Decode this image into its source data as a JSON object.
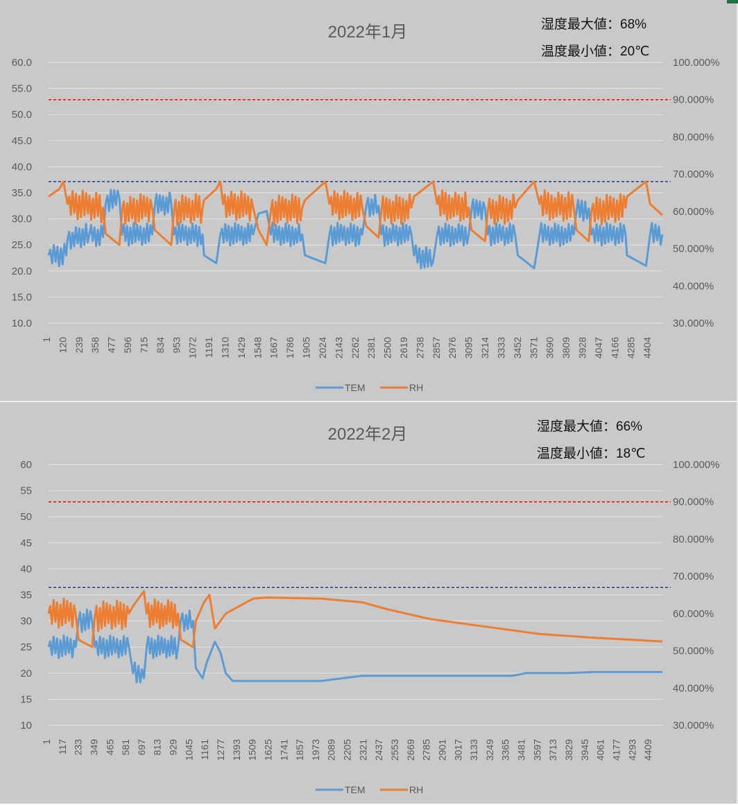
{
  "charts": [
    {
      "title": "2022年1月",
      "note_humidity_max": "湿度最大値：68%",
      "note_temp_min": "温度最小値：20℃",
      "legend": [
        "TEM",
        "RH"
      ],
      "colors": {
        "TEM": "#5b9bd5",
        "RH": "#ed7d31",
        "upper_limit": "#ff0000",
        "lower_limit": "#1f3b8c"
      }
    },
    {
      "title": "2022年2月",
      "note_humidity_max": "湿度最大値：66%",
      "note_temp_min": "温度最小値：18℃",
      "legend": [
        "TEM",
        "RH"
      ],
      "colors": {
        "TEM": "#5b9bd5",
        "RH": "#ed7d31",
        "upper_limit": "#ff0000",
        "lower_limit": "#1f3b8c"
      }
    }
  ],
  "chart_data": [
    {
      "type": "line",
      "title": "2022年1月",
      "y_left": {
        "range": [
          10,
          60
        ],
        "ticks": [
          "10.0",
          "15.0",
          "20.0",
          "25.0",
          "30.0",
          "35.0",
          "40.0",
          "45.0",
          "50.0",
          "55.0",
          "60.0"
        ]
      },
      "y_right": {
        "range": [
          0.3,
          1.0
        ],
        "ticks": [
          "30.000%",
          "40.000%",
          "50.000%",
          "60.000%",
          "70.000%",
          "80.000%",
          "90.000%",
          "100.000%"
        ]
      },
      "x_range": [
        1,
        4500
      ],
      "x_ticks": [
        "1",
        "120",
        "239",
        "358",
        "477",
        "596",
        "715",
        "834",
        "953",
        "1072",
        "1191",
        "1310",
        "1429",
        "1548",
        "1667",
        "1786",
        "1905",
        "2024",
        "2143",
        "2262",
        "2381",
        "2500",
        "2619",
        "2738",
        "2857",
        "2976",
        "3095",
        "3214",
        "3333",
        "3452",
        "3571",
        "3690",
        "3809",
        "3928",
        "4047",
        "4166",
        "4285",
        "4404"
      ],
      "grid": true,
      "legend_position": "bottom",
      "reference_lines": [
        {
          "axis": "right",
          "value": 0.9,
          "color": "#ff0000",
          "style": "dashed"
        },
        {
          "axis": "right",
          "value": 0.68,
          "color": "#1f3b8c",
          "style": "dashed"
        }
      ],
      "series": [
        {
          "name": "TEM",
          "axis": "left",
          "color": "#5b9bd5",
          "points": [
            [
              1,
              23
            ],
            [
              130,
              23
            ],
            [
              140,
              26
            ],
            [
              300,
              27
            ],
            [
              400,
              26.5
            ],
            [
              420,
              33
            ],
            [
              520,
              34
            ],
            [
              540,
              27
            ],
            [
              760,
              27
            ],
            [
              780,
              32.5
            ],
            [
              900,
              33
            ],
            [
              920,
              27
            ],
            [
              1130,
              27
            ],
            [
              1140,
              23
            ],
            [
              1230,
              21.5
            ],
            [
              1260,
              27
            ],
            [
              1500,
              27
            ],
            [
              1540,
              31
            ],
            [
              1600,
              31.5
            ],
            [
              1630,
              27
            ],
            [
              1860,
              27
            ],
            [
              1880,
              23
            ],
            [
              2030,
              21.5
            ],
            [
              2060,
              27
            ],
            [
              2300,
              27
            ],
            [
              2330,
              32.5
            ],
            [
              2420,
              32.5
            ],
            [
              2440,
              27
            ],
            [
              2660,
              27
            ],
            [
              2680,
              23
            ],
            [
              2820,
              22
            ],
            [
              2850,
              27
            ],
            [
              3080,
              27
            ],
            [
              3100,
              31.5
            ],
            [
              3200,
              32
            ],
            [
              3220,
              27
            ],
            [
              3420,
              27
            ],
            [
              3440,
              23
            ],
            [
              3560,
              20.5
            ],
            [
              3600,
              27
            ],
            [
              3850,
              27
            ],
            [
              3870,
              31.5
            ],
            [
              3960,
              32
            ],
            [
              3980,
              27
            ],
            [
              4230,
              27
            ],
            [
              4240,
              23
            ],
            [
              4380,
              21
            ],
            [
              4410,
              27
            ],
            [
              4500,
              27
            ]
          ]
        },
        {
          "name": "RH",
          "axis": "right",
          "color": "#ed7d31",
          "points": [
            [
              1,
              0.64
            ],
            [
              80,
              0.66
            ],
            [
              110,
              0.68
            ],
            [
              140,
              0.62
            ],
            [
              400,
              0.61
            ],
            [
              420,
              0.54
            ],
            [
              520,
              0.51
            ],
            [
              540,
              0.6
            ],
            [
              760,
              0.61
            ],
            [
              780,
              0.55
            ],
            [
              900,
              0.51
            ],
            [
              920,
              0.6
            ],
            [
              1130,
              0.61
            ],
            [
              1140,
              0.63
            ],
            [
              1230,
              0.66
            ],
            [
              1260,
              0.68
            ],
            [
              1280,
              0.62
            ],
            [
              1500,
              0.61
            ],
            [
              1540,
              0.55
            ],
            [
              1600,
              0.51
            ],
            [
              1630,
              0.6
            ],
            [
              1860,
              0.61
            ],
            [
              1880,
              0.63
            ],
            [
              2030,
              0.68
            ],
            [
              2060,
              0.62
            ],
            [
              2300,
              0.61
            ],
            [
              2330,
              0.56
            ],
            [
              2420,
              0.53
            ],
            [
              2440,
              0.6
            ],
            [
              2660,
              0.61
            ],
            [
              2680,
              0.64
            ],
            [
              2820,
              0.68
            ],
            [
              2850,
              0.62
            ],
            [
              3080,
              0.61
            ],
            [
              3100,
              0.55
            ],
            [
              3200,
              0.52
            ],
            [
              3220,
              0.6
            ],
            [
              3420,
              0.61
            ],
            [
              3440,
              0.63
            ],
            [
              3560,
              0.68
            ],
            [
              3600,
              0.62
            ],
            [
              3850,
              0.61
            ],
            [
              3870,
              0.55
            ],
            [
              3960,
              0.52
            ],
            [
              3980,
              0.6
            ],
            [
              4230,
              0.61
            ],
            [
              4240,
              0.64
            ],
            [
              4380,
              0.68
            ],
            [
              4410,
              0.62
            ],
            [
              4500,
              0.59
            ]
          ]
        }
      ]
    },
    {
      "type": "line",
      "title": "2022年2月",
      "y_left": {
        "range": [
          10,
          60
        ],
        "ticks": [
          "10",
          "15",
          "20",
          "25",
          "30",
          "35",
          "40",
          "45",
          "50",
          "55",
          "60"
        ]
      },
      "y_right": {
        "range": [
          0.3,
          1.0
        ],
        "ticks": [
          "30.000%",
          "40.000%",
          "50.000%",
          "60.000%",
          "70.000%",
          "80.000%",
          "90.000%",
          "100.000%"
        ]
      },
      "x_range": [
        1,
        4500
      ],
      "x_ticks": [
        "1",
        "117",
        "233",
        "349",
        "465",
        "581",
        "697",
        "813",
        "929",
        "1045",
        "1161",
        "1277",
        "1393",
        "1509",
        "1625",
        "1741",
        "1857",
        "1973",
        "2089",
        "2205",
        "2321",
        "2437",
        "2553",
        "2669",
        "2785",
        "2901",
        "3017",
        "3133",
        "3249",
        "3365",
        "3481",
        "3597",
        "3713",
        "3829",
        "3945",
        "4061",
        "4177",
        "4293",
        "4409"
      ],
      "grid": true,
      "legend_position": "bottom",
      "reference_lines": [
        {
          "axis": "right",
          "value": 0.9,
          "color": "#ff0000",
          "style": "dashed"
        },
        {
          "axis": "right",
          "value": 0.67,
          "color": "#1f3b8c",
          "style": "dashed"
        }
      ],
      "series": [
        {
          "name": "TEM",
          "axis": "left",
          "color": "#5b9bd5",
          "points": [
            [
              1,
              25
            ],
            [
              200,
              25
            ],
            [
              220,
              30
            ],
            [
              320,
              30
            ],
            [
              340,
              25
            ],
            [
              590,
              25
            ],
            [
              620,
              20
            ],
            [
              700,
              19
            ],
            [
              720,
              25
            ],
            [
              950,
              25
            ],
            [
              970,
              30
            ],
            [
              1060,
              30
            ],
            [
              1080,
              21
            ],
            [
              1130,
              19
            ],
            [
              1160,
              22
            ],
            [
              1220,
              26
            ],
            [
              1260,
              24
            ],
            [
              1300,
              20
            ],
            [
              1350,
              18.5
            ],
            [
              2000,
              18.5
            ],
            [
              2300,
              19.5
            ],
            [
              2600,
              19.5
            ],
            [
              3400,
              19.5
            ],
            [
              3500,
              20
            ],
            [
              3800,
              20
            ],
            [
              4000,
              20.2
            ],
            [
              4500,
              20.2
            ]
          ]
        },
        {
          "name": "RH",
          "axis": "right",
          "color": "#ed7d31",
          "points": [
            [
              1,
              0.6
            ],
            [
              200,
              0.6
            ],
            [
              220,
              0.53
            ],
            [
              320,
              0.51
            ],
            [
              340,
              0.59
            ],
            [
              590,
              0.6
            ],
            [
              620,
              0.62
            ],
            [
              700,
              0.66
            ],
            [
              720,
              0.6
            ],
            [
              950,
              0.6
            ],
            [
              970,
              0.53
            ],
            [
              1060,
              0.51
            ],
            [
              1080,
              0.58
            ],
            [
              1140,
              0.63
            ],
            [
              1180,
              0.65
            ],
            [
              1220,
              0.56
            ],
            [
              1260,
              0.58
            ],
            [
              1300,
              0.6
            ],
            [
              1400,
              0.62
            ],
            [
              1500,
              0.64
            ],
            [
              1600,
              0.643
            ],
            [
              2000,
              0.64
            ],
            [
              2300,
              0.63
            ],
            [
              2500,
              0.61
            ],
            [
              2800,
              0.585
            ],
            [
              3200,
              0.565
            ],
            [
              3600,
              0.545
            ],
            [
              4000,
              0.535
            ],
            [
              4500,
              0.525
            ]
          ]
        }
      ]
    }
  ]
}
